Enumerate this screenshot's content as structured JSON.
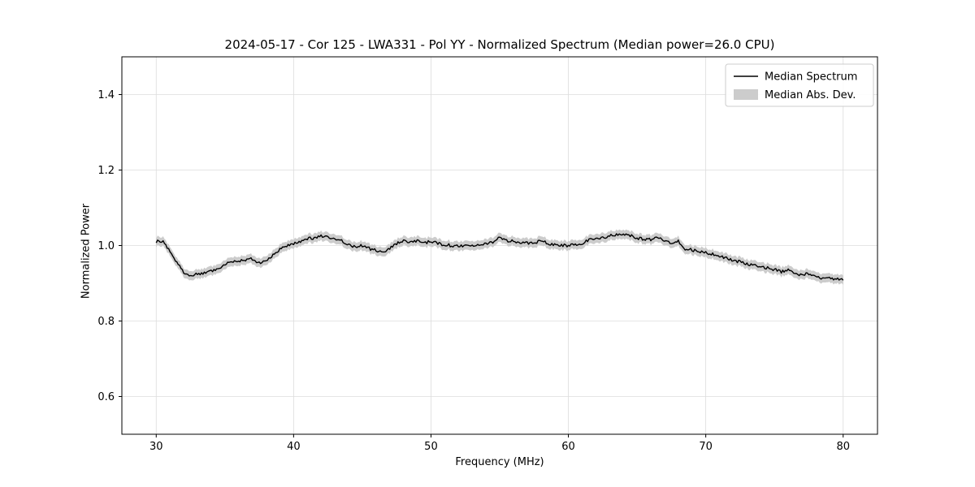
{
  "figure": {
    "title": "2024-05-17 - Cor 125 - LWA331 - Pol YY - Normalized Spectrum (Median power=26.0 CPU)",
    "xlabel": "Frequency (MHz)",
    "ylabel": "Normalized Power"
  },
  "legend": {
    "items": [
      {
        "label": "Median Spectrum",
        "type": "line",
        "color": "#000000"
      },
      {
        "label": "Median Abs. Dev.",
        "type": "band",
        "color": "#cccccc"
      }
    ]
  },
  "chart_data": {
    "type": "line",
    "title": "2024-05-17 - Cor 125 - LWA331 - Pol YY - Normalized Spectrum (Median power=26.0 CPU)",
    "xlabel": "Frequency (MHz)",
    "ylabel": "Normalized Power",
    "xlim": [
      27.5,
      82.5
    ],
    "ylim": [
      0.5,
      1.5
    ],
    "xticks": [
      30,
      40,
      50,
      60,
      70,
      80
    ],
    "yticks": [
      0.6,
      0.8,
      1.0,
      1.2,
      1.4
    ],
    "grid": true,
    "legend_position": "upper right",
    "noise_amplitude": 0.004,
    "series": [
      {
        "name": "Median Spectrum",
        "type": "line",
        "color": "#000000",
        "x_start": 30.0,
        "x_step": 0.5,
        "y": [
          1.01,
          1.012,
          0.985,
          0.955,
          0.93,
          0.92,
          0.924,
          0.928,
          0.933,
          0.94,
          0.95,
          0.956,
          0.96,
          0.963,
          0.965,
          0.953,
          0.96,
          0.976,
          0.99,
          1.0,
          1.005,
          1.012,
          1.018,
          1.02,
          1.025,
          1.022,
          1.015,
          1.012,
          1.002,
          0.997,
          1.0,
          0.992,
          0.987,
          0.982,
          0.992,
          1.005,
          1.012,
          1.01,
          1.012,
          1.008,
          1.01,
          1.006,
          1.002,
          1.0,
          0.999,
          1.0,
          1.001,
          1.003,
          1.006,
          1.01,
          1.02,
          1.012,
          1.012,
          1.008,
          1.006,
          1.006,
          1.012,
          1.006,
          1.002,
          1.0,
          1.0,
          1.002,
          1.006,
          1.016,
          1.016,
          1.02,
          1.026,
          1.03,
          1.03,
          1.026,
          1.02,
          1.016,
          1.016,
          1.02,
          1.012,
          1.006,
          1.012,
          0.992,
          0.988,
          0.984,
          0.982,
          0.977,
          0.972,
          0.966,
          0.962,
          0.956,
          0.951,
          0.947,
          0.946,
          0.94,
          0.936,
          0.931,
          0.936,
          0.926,
          0.921,
          0.926,
          0.916,
          0.911,
          0.916,
          0.91,
          0.91
        ]
      },
      {
        "name": "Median Abs. Dev.",
        "type": "band",
        "color": "#cccccc",
        "halfwidth": 0.012
      }
    ]
  }
}
